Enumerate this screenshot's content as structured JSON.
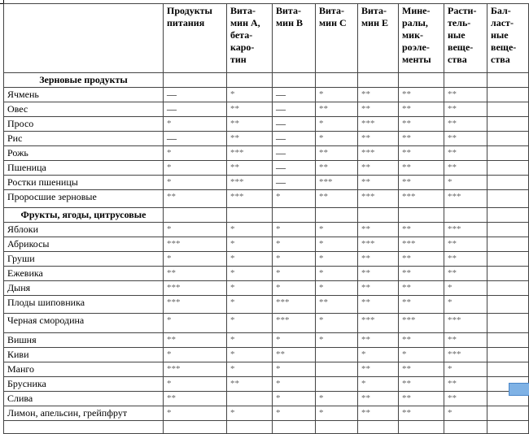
{
  "columns": [
    "",
    "Продукты\nпитания",
    "Вита-\nмин А,\nбета-\nкаро-\nтин",
    "Вита-\nмин В",
    "Вита-\nмин С",
    "Вита-\nмин Е",
    "Мине-\nралы,\nмик-\nроэле-\nменты",
    "Расти-\nтель-\nные\nвеще-\nства",
    "Бал-\nласт-\nные\nвеще-\nства"
  ],
  "sections": [
    {
      "title": "Зерновые продукты",
      "rows": [
        {
          "name": "Ячмень",
          "values": [
            "—",
            "*",
            "—",
            "*",
            "**",
            "**",
            "**",
            ""
          ]
        },
        {
          "name": "Овес",
          "values": [
            "—",
            "**",
            "—",
            "**",
            "**",
            "**",
            "**",
            ""
          ]
        },
        {
          "name": "Просо",
          "values": [
            "*",
            "**",
            "—",
            "*",
            "***",
            "**",
            "**",
            ""
          ]
        },
        {
          "name": "Рис",
          "values": [
            "—",
            "**",
            "—",
            "*",
            "**",
            "**",
            "**",
            ""
          ]
        },
        {
          "name": "Рожь",
          "values": [
            "*",
            "***",
            "—",
            "**",
            "***",
            "**",
            "**",
            ""
          ]
        },
        {
          "name": "Пшеница",
          "values": [
            "*",
            "**",
            "—",
            "**",
            "**",
            "**",
            "**",
            ""
          ]
        },
        {
          "name": "Ростки пшеницы",
          "values": [
            "*",
            "***",
            "—",
            "***",
            "**",
            "**",
            "*",
            ""
          ]
        },
        {
          "name": "Проросшие зерновые",
          "values": [
            "**",
            "***",
            "*",
            "**",
            "***",
            "***",
            "***",
            ""
          ],
          "tall": 1
        }
      ]
    },
    {
      "title": "Фрукты, ягоды, цитрусовые",
      "rows": [
        {
          "name": "Яблоки",
          "values": [
            "*",
            "*",
            "*",
            "*",
            "**",
            "**",
            "***",
            ""
          ]
        },
        {
          "name": "Абрикосы",
          "values": [
            "***",
            "*",
            "*",
            "*",
            "***",
            "***",
            "**",
            ""
          ]
        },
        {
          "name": "Груши",
          "values": [
            "*",
            "*",
            "*",
            "*",
            "**",
            "**",
            "**",
            ""
          ]
        },
        {
          "name": "Ежевика",
          "values": [
            "**",
            "*",
            "*",
            "*",
            "**",
            "**",
            "**",
            ""
          ]
        },
        {
          "name": "Дыня",
          "values": [
            "***",
            "*",
            "*",
            "*",
            "**",
            "**",
            "*",
            ""
          ]
        },
        {
          "name": "Плоды шиповника",
          "values": [
            "***",
            "*",
            "***",
            "**",
            "**",
            "**",
            "*",
            ""
          ],
          "tall": 1
        },
        {
          "name": "Черная смородина",
          "values": [
            "*",
            "*",
            "***",
            "*",
            "***",
            "***",
            "***",
            ""
          ],
          "tall": 2
        },
        {
          "name": "Вишня",
          "values": [
            "**",
            "*",
            "*",
            "*",
            "**",
            "**",
            "**",
            ""
          ]
        },
        {
          "name": "Киви",
          "values": [
            "*",
            "*",
            "**",
            "",
            "*",
            "*",
            "***",
            ""
          ]
        },
        {
          "name": "Манго",
          "values": [
            "***",
            "*",
            "*",
            "",
            "**",
            "**",
            "*",
            ""
          ]
        },
        {
          "name": "Брусника",
          "values": [
            "*",
            "**",
            "*",
            "",
            "*",
            "**",
            "**",
            ""
          ]
        },
        {
          "name": "Слива",
          "values": [
            "**",
            "",
            "*",
            "*",
            "**",
            "**",
            "**",
            ""
          ]
        },
        {
          "name": "Лимон, апельсин, грейпфрут",
          "values": [
            "*",
            "*",
            "*",
            "*",
            "**",
            "**",
            "*",
            ""
          ]
        }
      ]
    }
  ]
}
